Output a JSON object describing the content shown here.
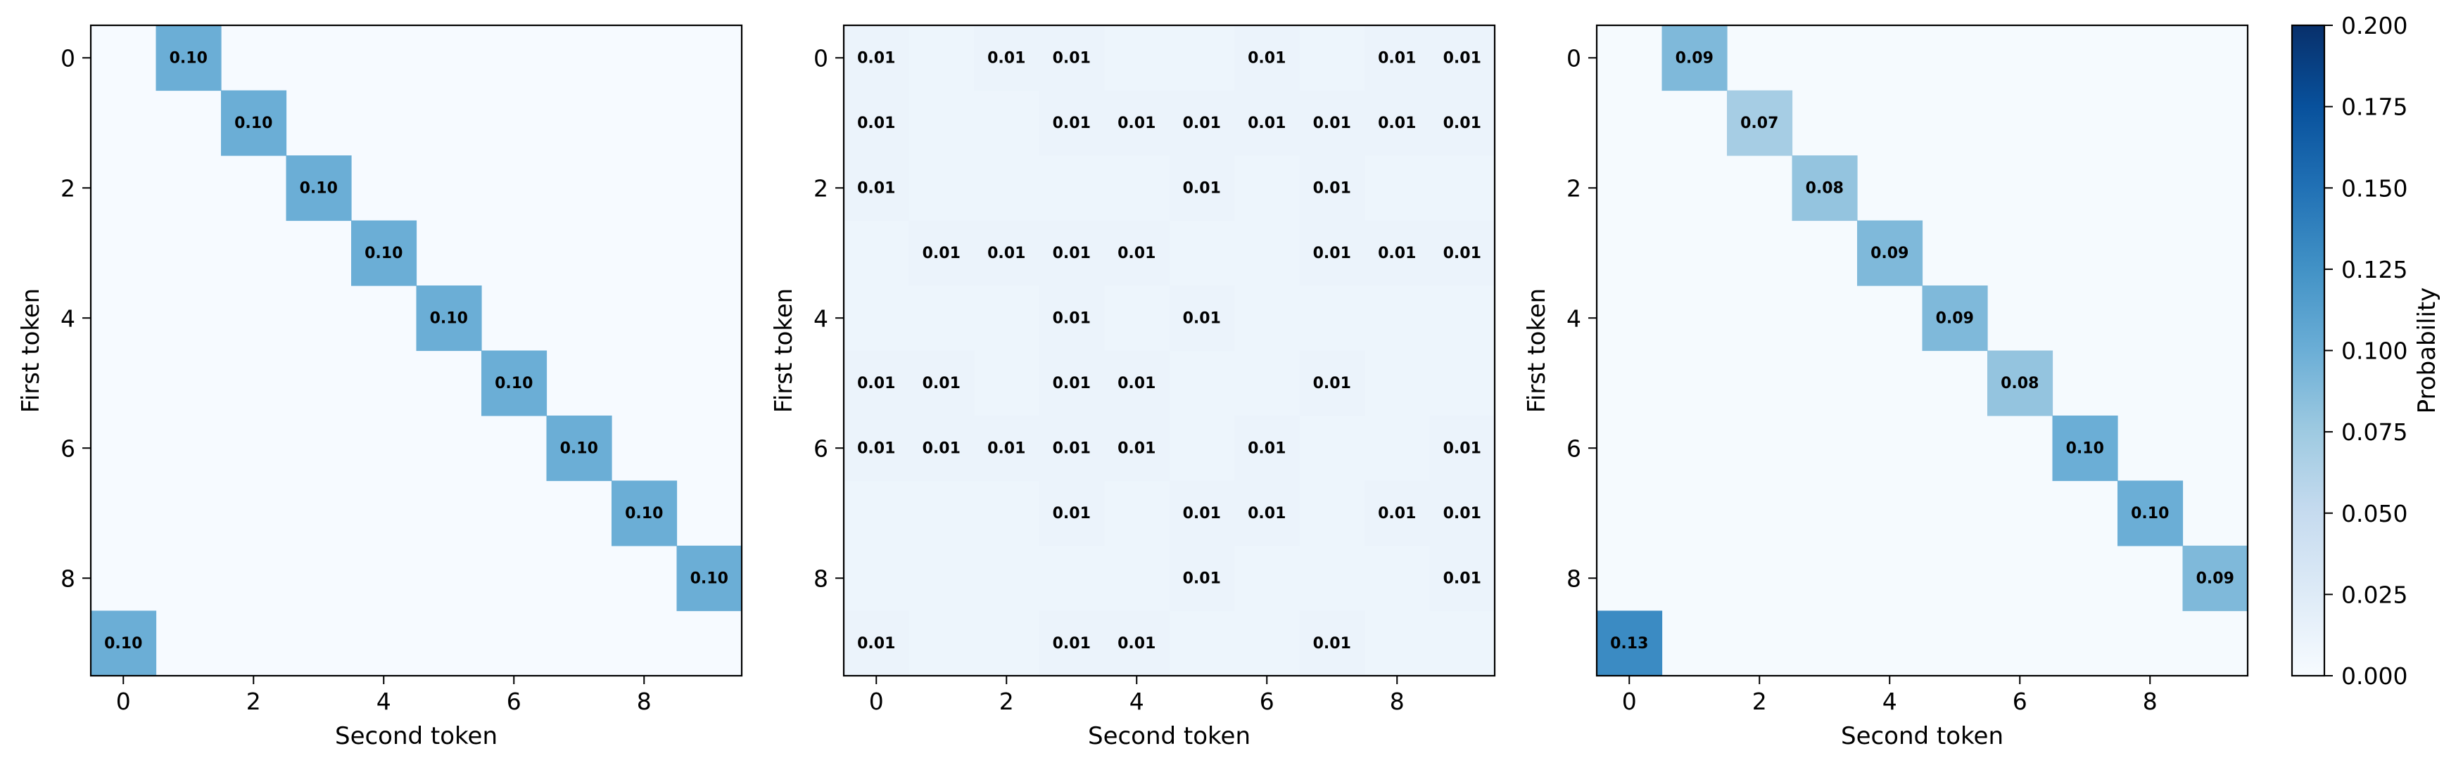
{
  "colorbar": {
    "label": "Probability",
    "vmin": 0.0,
    "vmax": 0.2,
    "ticks": [
      "0.000",
      "0.025",
      "0.050",
      "0.075",
      "0.100",
      "0.125",
      "0.150",
      "0.175",
      "0.200"
    ],
    "colormap": [
      "#f7fbff",
      "#deebf7",
      "#c6dbef",
      "#9ecae1",
      "#6baed6",
      "#4292c6",
      "#2171b5",
      "#08519c",
      "#08306b"
    ]
  },
  "chart_data": [
    {
      "type": "heatmap",
      "title": "",
      "xlabel": "Second token",
      "ylabel": "First token",
      "xticks": [
        "0",
        "2",
        "4",
        "6",
        "8"
      ],
      "yticks": [
        "0",
        "2",
        "4",
        "6",
        "8"
      ],
      "size": 10,
      "background_value": 0.001,
      "cells": [
        {
          "row": 0,
          "col": 1,
          "value": 0.1,
          "label": "0.10"
        },
        {
          "row": 1,
          "col": 2,
          "value": 0.1,
          "label": "0.10"
        },
        {
          "row": 2,
          "col": 3,
          "value": 0.1,
          "label": "0.10"
        },
        {
          "row": 3,
          "col": 4,
          "value": 0.1,
          "label": "0.10"
        },
        {
          "row": 4,
          "col": 5,
          "value": 0.1,
          "label": "0.10"
        },
        {
          "row": 5,
          "col": 6,
          "value": 0.1,
          "label": "0.10"
        },
        {
          "row": 6,
          "col": 7,
          "value": 0.1,
          "label": "0.10"
        },
        {
          "row": 7,
          "col": 8,
          "value": 0.1,
          "label": "0.10"
        },
        {
          "row": 8,
          "col": 9,
          "value": 0.1,
          "label": "0.10"
        },
        {
          "row": 9,
          "col": 0,
          "value": 0.1,
          "label": "0.10"
        }
      ]
    },
    {
      "type": "heatmap",
      "title": "",
      "xlabel": "Second token",
      "ylabel": "First token",
      "xticks": [
        "0",
        "2",
        "4",
        "6",
        "8"
      ],
      "yticks": [
        "0",
        "2",
        "4",
        "6",
        "8"
      ],
      "size": 10,
      "background_value": 0.01,
      "cells": [
        {
          "row": 0,
          "col": 0,
          "value": 0.012,
          "label": "0.01"
        },
        {
          "row": 0,
          "col": 2,
          "value": 0.012,
          "label": "0.01"
        },
        {
          "row": 0,
          "col": 3,
          "value": 0.012,
          "label": "0.01"
        },
        {
          "row": 0,
          "col": 6,
          "value": 0.012,
          "label": "0.01"
        },
        {
          "row": 0,
          "col": 8,
          "value": 0.012,
          "label": "0.01"
        },
        {
          "row": 0,
          "col": 9,
          "value": 0.012,
          "label": "0.01"
        },
        {
          "row": 1,
          "col": 0,
          "value": 0.012,
          "label": "0.01"
        },
        {
          "row": 1,
          "col": 3,
          "value": 0.012,
          "label": "0.01"
        },
        {
          "row": 1,
          "col": 4,
          "value": 0.012,
          "label": "0.01"
        },
        {
          "row": 1,
          "col": 5,
          "value": 0.012,
          "label": "0.01"
        },
        {
          "row": 1,
          "col": 6,
          "value": 0.012,
          "label": "0.01"
        },
        {
          "row": 1,
          "col": 7,
          "value": 0.012,
          "label": "0.01"
        },
        {
          "row": 1,
          "col": 8,
          "value": 0.012,
          "label": "0.01"
        },
        {
          "row": 1,
          "col": 9,
          "value": 0.012,
          "label": "0.01"
        },
        {
          "row": 2,
          "col": 0,
          "value": 0.012,
          "label": "0.01"
        },
        {
          "row": 2,
          "col": 5,
          "value": 0.012,
          "label": "0.01"
        },
        {
          "row": 2,
          "col": 7,
          "value": 0.012,
          "label": "0.01"
        },
        {
          "row": 3,
          "col": 1,
          "value": 0.012,
          "label": "0.01"
        },
        {
          "row": 3,
          "col": 2,
          "value": 0.012,
          "label": "0.01"
        },
        {
          "row": 3,
          "col": 3,
          "value": 0.012,
          "label": "0.01"
        },
        {
          "row": 3,
          "col": 4,
          "value": 0.012,
          "label": "0.01"
        },
        {
          "row": 3,
          "col": 7,
          "value": 0.012,
          "label": "0.01"
        },
        {
          "row": 3,
          "col": 8,
          "value": 0.012,
          "label": "0.01"
        },
        {
          "row": 3,
          "col": 9,
          "value": 0.012,
          "label": "0.01"
        },
        {
          "row": 4,
          "col": 3,
          "value": 0.012,
          "label": "0.01"
        },
        {
          "row": 4,
          "col": 5,
          "value": 0.012,
          "label": "0.01"
        },
        {
          "row": 5,
          "col": 0,
          "value": 0.012,
          "label": "0.01"
        },
        {
          "row": 5,
          "col": 1,
          "value": 0.012,
          "label": "0.01"
        },
        {
          "row": 5,
          "col": 3,
          "value": 0.012,
          "label": "0.01"
        },
        {
          "row": 5,
          "col": 4,
          "value": 0.012,
          "label": "0.01"
        },
        {
          "row": 5,
          "col": 7,
          "value": 0.012,
          "label": "0.01"
        },
        {
          "row": 6,
          "col": 0,
          "value": 0.012,
          "label": "0.01"
        },
        {
          "row": 6,
          "col": 1,
          "value": 0.012,
          "label": "0.01"
        },
        {
          "row": 6,
          "col": 2,
          "value": 0.012,
          "label": "0.01"
        },
        {
          "row": 6,
          "col": 3,
          "value": 0.012,
          "label": "0.01"
        },
        {
          "row": 6,
          "col": 4,
          "value": 0.012,
          "label": "0.01"
        },
        {
          "row": 6,
          "col": 6,
          "value": 0.012,
          "label": "0.01"
        },
        {
          "row": 6,
          "col": 9,
          "value": 0.012,
          "label": "0.01"
        },
        {
          "row": 7,
          "col": 3,
          "value": 0.012,
          "label": "0.01"
        },
        {
          "row": 7,
          "col": 5,
          "value": 0.012,
          "label": "0.01"
        },
        {
          "row": 7,
          "col": 6,
          "value": 0.012,
          "label": "0.01"
        },
        {
          "row": 7,
          "col": 8,
          "value": 0.012,
          "label": "0.01"
        },
        {
          "row": 7,
          "col": 9,
          "value": 0.012,
          "label": "0.01"
        },
        {
          "row": 8,
          "col": 5,
          "value": 0.012,
          "label": "0.01"
        },
        {
          "row": 8,
          "col": 9,
          "value": 0.012,
          "label": "0.01"
        },
        {
          "row": 9,
          "col": 0,
          "value": 0.012,
          "label": "0.01"
        },
        {
          "row": 9,
          "col": 3,
          "value": 0.012,
          "label": "0.01"
        },
        {
          "row": 9,
          "col": 4,
          "value": 0.012,
          "label": "0.01"
        },
        {
          "row": 9,
          "col": 7,
          "value": 0.012,
          "label": "0.01"
        }
      ]
    },
    {
      "type": "heatmap",
      "title": "",
      "xlabel": "Second token",
      "ylabel": "First token",
      "xticks": [
        "0",
        "2",
        "4",
        "6",
        "8"
      ],
      "yticks": [
        "0",
        "2",
        "4",
        "6",
        "8"
      ],
      "size": 10,
      "background_value": 0.002,
      "cells": [
        {
          "row": 0,
          "col": 1,
          "value": 0.09,
          "label": "0.09"
        },
        {
          "row": 1,
          "col": 2,
          "value": 0.07,
          "label": "0.07"
        },
        {
          "row": 2,
          "col": 3,
          "value": 0.08,
          "label": "0.08"
        },
        {
          "row": 3,
          "col": 4,
          "value": 0.09,
          "label": "0.09"
        },
        {
          "row": 4,
          "col": 5,
          "value": 0.09,
          "label": "0.09"
        },
        {
          "row": 5,
          "col": 6,
          "value": 0.08,
          "label": "0.08"
        },
        {
          "row": 6,
          "col": 7,
          "value": 0.1,
          "label": "0.10"
        },
        {
          "row": 7,
          "col": 8,
          "value": 0.1,
          "label": "0.10"
        },
        {
          "row": 8,
          "col": 9,
          "value": 0.09,
          "label": "0.09"
        },
        {
          "row": 9,
          "col": 0,
          "value": 0.13,
          "label": "0.13"
        }
      ]
    }
  ]
}
